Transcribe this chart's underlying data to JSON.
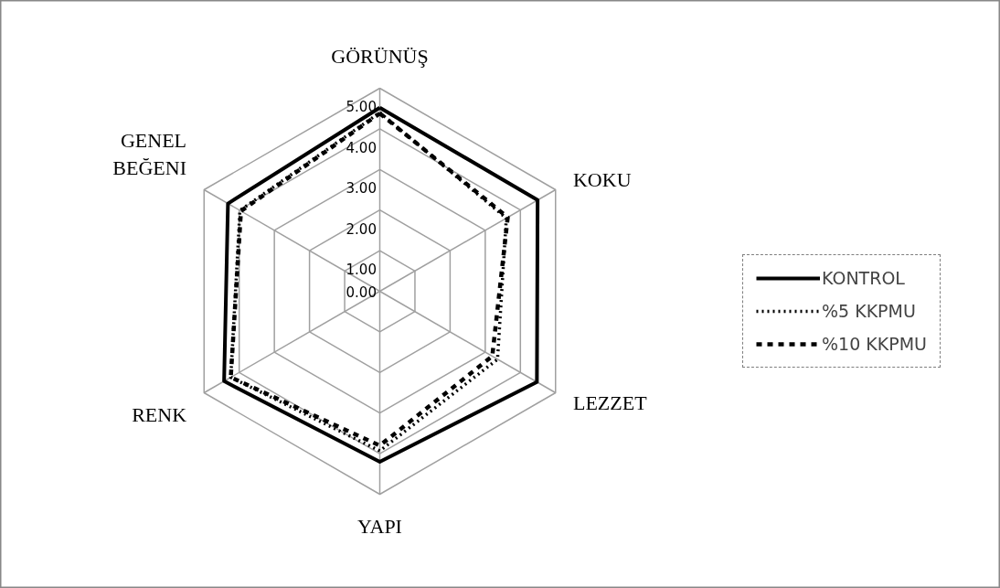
{
  "chart_data": {
    "type": "radar",
    "categories": [
      "GÖRÜNÜŞ",
      "KOKU",
      "LEZZET",
      "YAPI",
      "RENK",
      "GENEL BEĞENI"
    ],
    "series": [
      {
        "name": "KONTROL",
        "color": "#000000",
        "line_style": "solid",
        "values": [
          4.52,
          4.49,
          4.47,
          4.2,
          4.43,
          4.32
        ]
      },
      {
        "name": "%5 KKPMU",
        "color": "#000000",
        "line_style": "dotted",
        "values": [
          4.4,
          3.6,
          3.35,
          3.93,
          4.24,
          3.98
        ]
      },
      {
        "name": "%10 KKPMU",
        "color": "#000000",
        "line_style": "dashed",
        "values": [
          4.38,
          3.64,
          3.2,
          3.8,
          4.24,
          3.95
        ]
      }
    ],
    "ylim": [
      0,
      5
    ],
    "yticks": [
      {
        "value": 0,
        "label": "0.00"
      },
      {
        "value": 1,
        "label": "1.00"
      },
      {
        "value": 2,
        "label": "2.00"
      },
      {
        "value": 3,
        "label": "3.00"
      },
      {
        "value": 4,
        "label": "4.00"
      },
      {
        "value": 5,
        "label": "5.00"
      }
    ],
    "grid": true,
    "legend": "right"
  }
}
